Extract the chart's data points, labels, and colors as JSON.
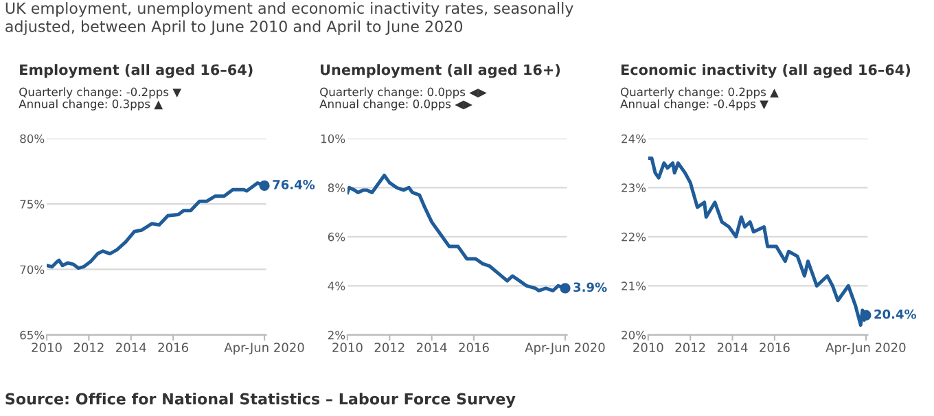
{
  "chart_data": [
    {
      "type": "line",
      "title": "Employment (all aged 16–64)",
      "subtitle": "Quarterly change: -0.2pps ▼\nAnnual change: 0.3pps ▲",
      "annotations": [
        "UK employment, unemployment and economic inactivity rates, seasonally\nadjusted, between April to June 2010 and April to June 2020",
        "Source: Office for National Statistics – Labour Force Survey",
        {
          "text": "76.4%",
          "x": "2020-05",
          "y": 76.4
        }
      ],
      "series": [
        {
          "color": "#1f5c99",
          "x": [
            "2010-01",
            "2010-04",
            "2010-07",
            "2010-08",
            "2010-10",
            "2011-01",
            "2011-04",
            "2011-07",
            "2011-10",
            "2012-02",
            "2012-06",
            "2012-09",
            "2013-01",
            "2013-05",
            "2013-10",
            "2014-03",
            "2014-07",
            "2015-01",
            "2015-05",
            "2015-10",
            "2016-04",
            "2016-07",
            "2016-11",
            "2017-04",
            "2017-08",
            "2018-01",
            "2018-06",
            "2018-11",
            "2019-05",
            "2019-07",
            "2019-11",
            "2020-01",
            "2020-05"
          ],
          "values": [
            70.3,
            70.2,
            70.6,
            70.7,
            70.3,
            70.5,
            70.4,
            70.1,
            70.2,
            70.6,
            71.2,
            71.4,
            71.2,
            71.5,
            72.1,
            72.9,
            73.0,
            73.5,
            73.4,
            74.1,
            74.2,
            74.5,
            74.5,
            75.2,
            75.2,
            75.6,
            75.6,
            76.1,
            76.1,
            76.0,
            76.4,
            76.6,
            76.4
          ]
        }
      ],
      "xlim": [
        "2010-01",
        "2020-06"
      ],
      "xticks": [
        "2010",
        "2012",
        "2014",
        "2016",
        {
          "value": "2020-05",
          "label": "Apr-Jun 2020"
        }
      ],
      "ylim": [
        65,
        80
      ],
      "yticks": [
        {
          "value": 65,
          "label": "65%"
        },
        {
          "value": 70,
          "label": "70%"
        },
        {
          "value": 75,
          "label": "75%"
        },
        {
          "value": 80,
          "label": "80%"
        }
      ],
      "grid": "y",
      "line_style": "solid"
    },
    {
      "type": "line",
      "title": "Unemployment (all aged 16+)",
      "subtitle": "Quarterly change: 0.0pps ◀▶\nAnnual change: 0.0pps ◀▶",
      "annotations": [
        {
          "text": "3.9%",
          "x": "2020-05",
          "y": 3.9
        }
      ],
      "series": [
        {
          "color": "#1f5c99",
          "x": [
            "2010-01",
            "2010-02",
            "2010-05",
            "2010-07",
            "2010-10",
            "2010-12",
            "2011-03",
            "2011-06",
            "2011-10",
            "2012-01",
            "2012-05",
            "2012-09",
            "2012-12",
            "2013-02",
            "2013-06",
            "2013-09",
            "2014-01",
            "2014-06",
            "2014-11",
            "2015-04",
            "2015-09",
            "2016-02",
            "2016-06",
            "2016-10",
            "2017-03",
            "2017-08",
            "2017-11",
            "2018-03",
            "2018-07",
            "2018-12",
            "2019-02",
            "2019-06",
            "2019-10",
            "2020-01",
            "2020-05"
          ],
          "values": [
            7.8,
            8.0,
            7.9,
            7.8,
            7.9,
            7.9,
            7.8,
            8.1,
            8.5,
            8.2,
            8.0,
            7.9,
            8.0,
            7.8,
            7.7,
            7.2,
            6.6,
            6.1,
            5.6,
            5.6,
            5.1,
            5.1,
            4.9,
            4.8,
            4.5,
            4.2,
            4.4,
            4.2,
            4.0,
            3.9,
            3.8,
            3.9,
            3.8,
            4.0,
            3.9
          ]
        }
      ],
      "xlim": [
        "2010-01",
        "2020-06"
      ],
      "xticks": [
        "2010",
        "2012",
        "2014",
        "2016",
        {
          "value": "2020-05",
          "label": "Apr-Jun 2020"
        }
      ],
      "ylim": [
        2,
        10
      ],
      "yticks": [
        {
          "value": 2,
          "label": "2%"
        },
        {
          "value": 4,
          "label": "4%"
        },
        {
          "value": 6,
          "label": "6%"
        },
        {
          "value": 8,
          "label": "8%"
        },
        {
          "value": 10,
          "label": "10%"
        }
      ],
      "grid": "y",
      "line_style": "solid"
    },
    {
      "type": "line",
      "title": "Economic inactivity (all aged 16–64)",
      "subtitle": "Quarterly change: 0.2pps ▲\nAnnual change: -0.4pps ▼",
      "annotations": [
        {
          "text": "20.4%",
          "x": "2020-05",
          "y": 20.4
        }
      ],
      "series": [
        {
          "color": "#1f5c99",
          "x": [
            "2010-01",
            "2010-03",
            "2010-05",
            "2010-07",
            "2010-10",
            "2010-12",
            "2011-03",
            "2011-04",
            "2011-06",
            "2011-10",
            "2012-01",
            "2012-05",
            "2012-09",
            "2012-10",
            "2013-03",
            "2013-07",
            "2013-11",
            "2014-03",
            "2014-06",
            "2014-08",
            "2014-11",
            "2015-01",
            "2015-07",
            "2015-09",
            "2016-02",
            "2016-07",
            "2016-09",
            "2017-02",
            "2017-06",
            "2017-08",
            "2017-11",
            "2018-01",
            "2018-07",
            "2018-10",
            "2019-01",
            "2019-05",
            "2019-07",
            "2019-11",
            "2020-02",
            "2020-03",
            "2020-04",
            "2020-05"
          ],
          "values": [
            23.6,
            23.6,
            23.3,
            23.2,
            23.5,
            23.4,
            23.5,
            23.3,
            23.5,
            23.3,
            23.1,
            22.6,
            22.7,
            22.4,
            22.7,
            22.3,
            22.2,
            22.0,
            22.4,
            22.2,
            22.3,
            22.1,
            22.2,
            21.8,
            21.8,
            21.5,
            21.7,
            21.6,
            21.2,
            21.5,
            21.2,
            21.0,
            21.2,
            21.0,
            20.7,
            20.9,
            21.0,
            20.6,
            20.2,
            20.5,
            20.3,
            20.4
          ]
        }
      ],
      "xlim": [
        "2010-01",
        "2020-06"
      ],
      "xticks": [
        "2010",
        "2012",
        "2014",
        "2016",
        {
          "value": "2020-05",
          "label": "Apr-Jun 2020"
        }
      ],
      "ylim": [
        20,
        24
      ],
      "yticks": [
        {
          "value": 20,
          "label": "20%"
        },
        {
          "value": 21,
          "label": "21%"
        },
        {
          "value": 22,
          "label": "22%"
        },
        {
          "value": 23,
          "label": "23%"
        },
        {
          "value": 24,
          "label": "24%"
        }
      ],
      "grid": "y",
      "line_style": "solid"
    }
  ]
}
